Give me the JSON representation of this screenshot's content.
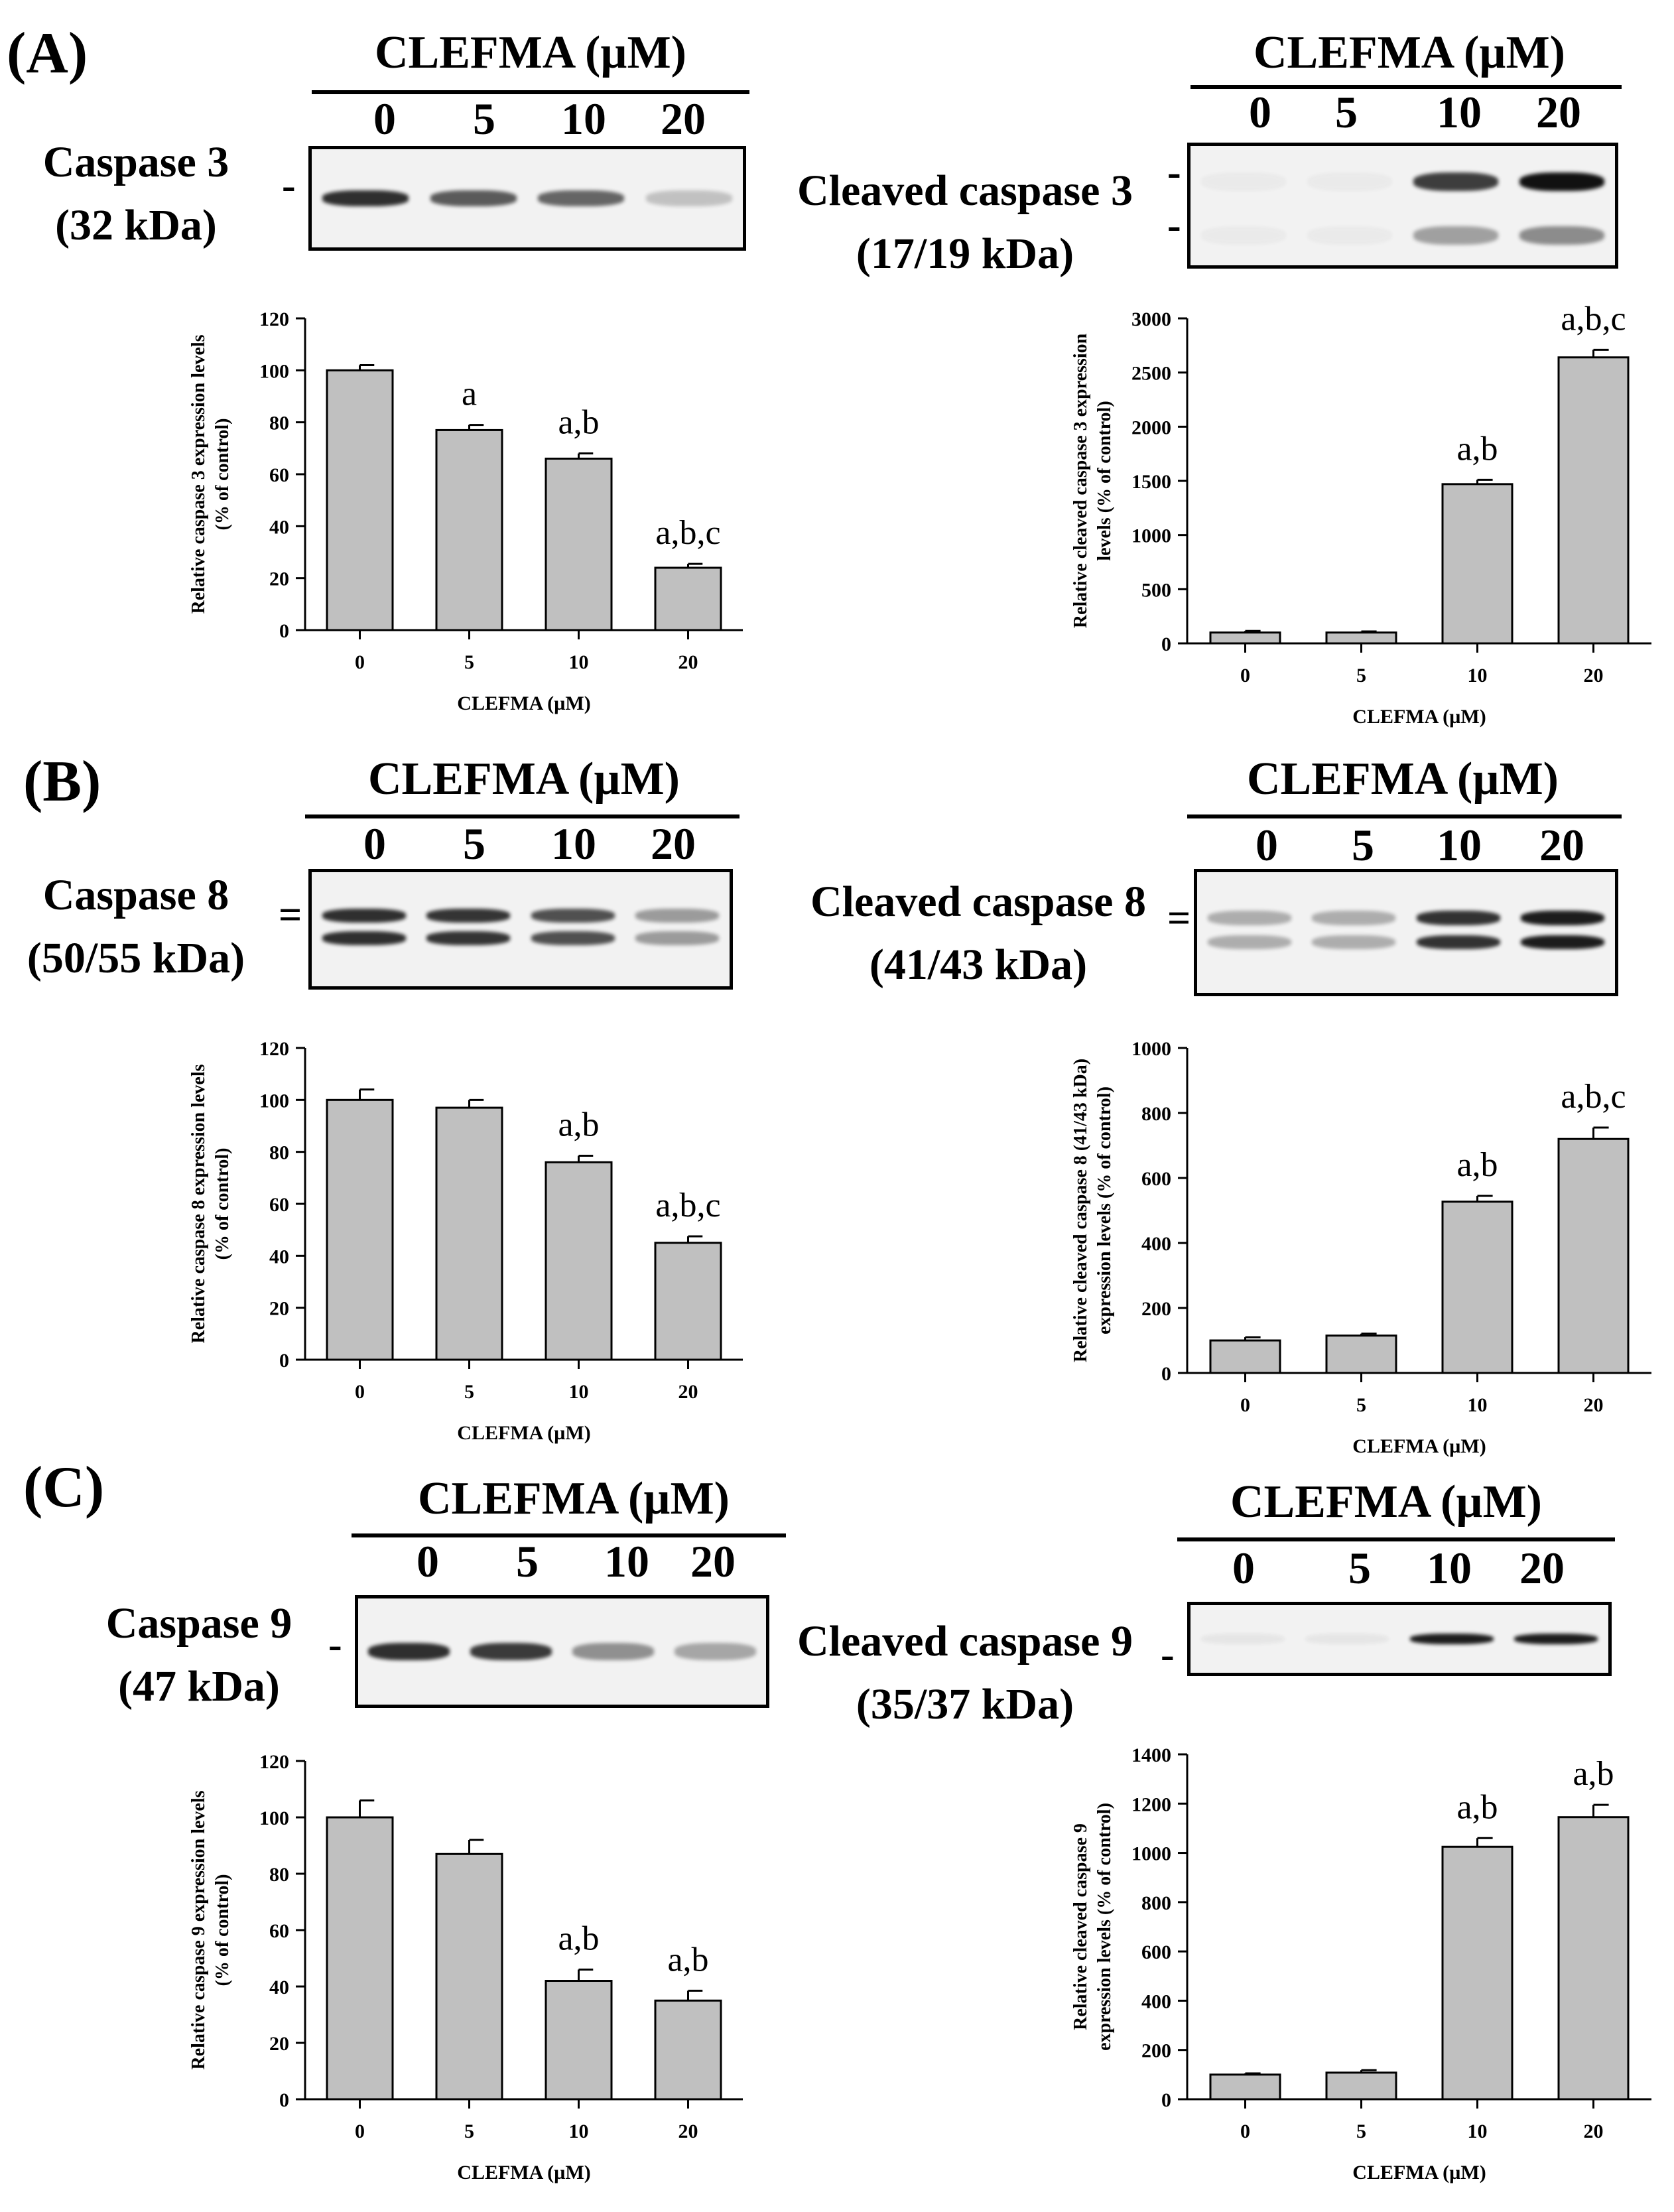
{
  "figure": {
    "panels": [
      {
        "label": "(A)",
        "blots": [
          {
            "title": "CLEFMA (µM)",
            "lanes": [
              "0",
              "5",
              "10",
              "20"
            ],
            "protein": "Caspase 3",
            "kda": "(32 kDa)",
            "marker": "-",
            "band_intensity": [
              0.9,
              0.7,
              0.65,
              0.22
            ],
            "band_color": "#1a1a1a"
          },
          {
            "title": "CLEFMA (µM)",
            "lanes": [
              "0",
              "5",
              "10",
              "20"
            ],
            "protein": "Cleaved caspase 3",
            "kda": "(17/19 kDa)",
            "marker": "-",
            "band_intensity": [
              0.03,
              0.03,
              0.8,
              1.0
            ],
            "band_color": "#111111"
          }
        ]
      },
      {
        "label": "(B)",
        "blots": [
          {
            "title": "CLEFMA (µM)",
            "lanes": [
              "0",
              "5",
              "10",
              "20"
            ],
            "protein": "Caspase 8",
            "kda": "(50/55 kDa)",
            "marker": "=",
            "band_intensity": [
              0.9,
              0.88,
              0.75,
              0.4
            ],
            "band_color": "#1a1a1a"
          },
          {
            "title": "CLEFMA (µM)",
            "lanes": [
              "0",
              "5",
              "10",
              "20"
            ],
            "protein": "Cleaved caspase 8",
            "kda": "(41/43 kDa)",
            "marker": "=",
            "band_intensity": [
              0.3,
              0.3,
              0.85,
              0.95
            ],
            "band_color": "#111111"
          }
        ]
      },
      {
        "label": "(C)",
        "blots": [
          {
            "title": "CLEFMA (µM)",
            "lanes": [
              "0",
              "5",
              "10",
              "20"
            ],
            "protein": "Caspase 9",
            "kda": "(47 kDa)",
            "marker": "-",
            "band_intensity": [
              0.9,
              0.85,
              0.45,
              0.35
            ],
            "band_color": "#1a1a1a"
          },
          {
            "title": "CLEFMA (µM)",
            "lanes": [
              "0",
              "5",
              "10",
              "20"
            ],
            "protein": "Cleaved caspase 9",
            "kda": "(35/37 kDa)",
            "marker": "-",
            "band_intensity": [
              0.05,
              0.05,
              0.95,
              0.95
            ],
            "band_color": "#111111"
          }
        ]
      }
    ]
  },
  "chart_data": [
    {
      "type": "bar",
      "panel": "A-left",
      "categories": [
        "0",
        "5",
        "10",
        "20"
      ],
      "values": [
        100,
        77,
        66,
        24
      ],
      "errors": [
        2,
        2,
        2,
        1.5
      ],
      "annotations": [
        "",
        "a",
        "a,b",
        "a,b,c"
      ],
      "xlabel": "CLEFMA (µM)",
      "ylabel": [
        "Relative caspase 3 expression levels",
        "(% of control)"
      ],
      "ylim": [
        0,
        120
      ],
      "yticks": [
        0,
        20,
        40,
        60,
        80,
        100,
        120
      ],
      "bar_color": "#c0c0c0"
    },
    {
      "type": "bar",
      "panel": "A-right",
      "categories": [
        "0",
        "5",
        "10",
        "20"
      ],
      "values": [
        100,
        100,
        1470,
        2640
      ],
      "errors": [
        15,
        10,
        40,
        70
      ],
      "annotations": [
        "",
        "",
        "a,b",
        "a,b,c"
      ],
      "xlabel": "CLEFMA (µM)",
      "ylabel": [
        "Relative cleaved caspase 3 expression",
        "levels (% of control)"
      ],
      "ylim": [
        0,
        3000
      ],
      "yticks": [
        0,
        500,
        1000,
        1500,
        2000,
        2500,
        3000
      ],
      "bar_color": "#c0c0c0"
    },
    {
      "type": "bar",
      "panel": "B-left",
      "categories": [
        "0",
        "5",
        "10",
        "20"
      ],
      "values": [
        100,
        97,
        76,
        45
      ],
      "errors": [
        4,
        3,
        2.5,
        2.5
      ],
      "annotations": [
        "",
        "",
        "a,b",
        "a,b,c"
      ],
      "xlabel": "CLEFMA (µM)",
      "ylabel": [
        "Relative caspase 8 expression levels",
        "(% of control)"
      ],
      "ylim": [
        0,
        120
      ],
      "yticks": [
        0,
        20,
        40,
        60,
        80,
        100,
        120
      ],
      "bar_color": "#c0c0c0"
    },
    {
      "type": "bar",
      "panel": "B-right",
      "categories": [
        "0",
        "5",
        "10",
        "20"
      ],
      "values": [
        100,
        115,
        527,
        720
      ],
      "errors": [
        10,
        6,
        18,
        35
      ],
      "annotations": [
        "",
        "",
        "a,b",
        "a,b,c"
      ],
      "xlabel": "CLEFMA (µM)",
      "ylabel": [
        "Relative cleaved caspase 8 (41/43 kDa)",
        "expression levels (% of control)"
      ],
      "ylim": [
        0,
        1000
      ],
      "yticks": [
        0,
        200,
        400,
        600,
        800,
        1000
      ],
      "bar_color": "#c0c0c0"
    },
    {
      "type": "bar",
      "panel": "C-left",
      "categories": [
        "0",
        "5",
        "10",
        "20"
      ],
      "values": [
        100,
        87,
        42,
        35
      ],
      "errors": [
        6,
        5,
        4,
        3.5
      ],
      "annotations": [
        "",
        "",
        "a,b",
        "a,b"
      ],
      "xlabel": "CLEFMA (µM)",
      "ylabel": [
        "Relative caspase 9 expression levels",
        "(% of control)"
      ],
      "ylim": [
        0,
        120
      ],
      "yticks": [
        0,
        20,
        40,
        60,
        80,
        100,
        120
      ],
      "bar_color": "#c0c0c0"
    },
    {
      "type": "bar",
      "panel": "C-right",
      "categories": [
        "0",
        "5",
        "10",
        "20"
      ],
      "values": [
        100,
        108,
        1025,
        1145
      ],
      "errors": [
        5,
        10,
        35,
        50
      ],
      "annotations": [
        "",
        "",
        "a,b",
        "a,b"
      ],
      "xlabel": "CLEFMA (µM)",
      "ylabel": [
        "Relative cleaved caspase 9",
        "expression levels (% of control)"
      ],
      "ylim": [
        0,
        1400
      ],
      "yticks": [
        0,
        200,
        400,
        600,
        800,
        1000,
        1200,
        1400
      ],
      "bar_color": "#c0c0c0"
    }
  ]
}
